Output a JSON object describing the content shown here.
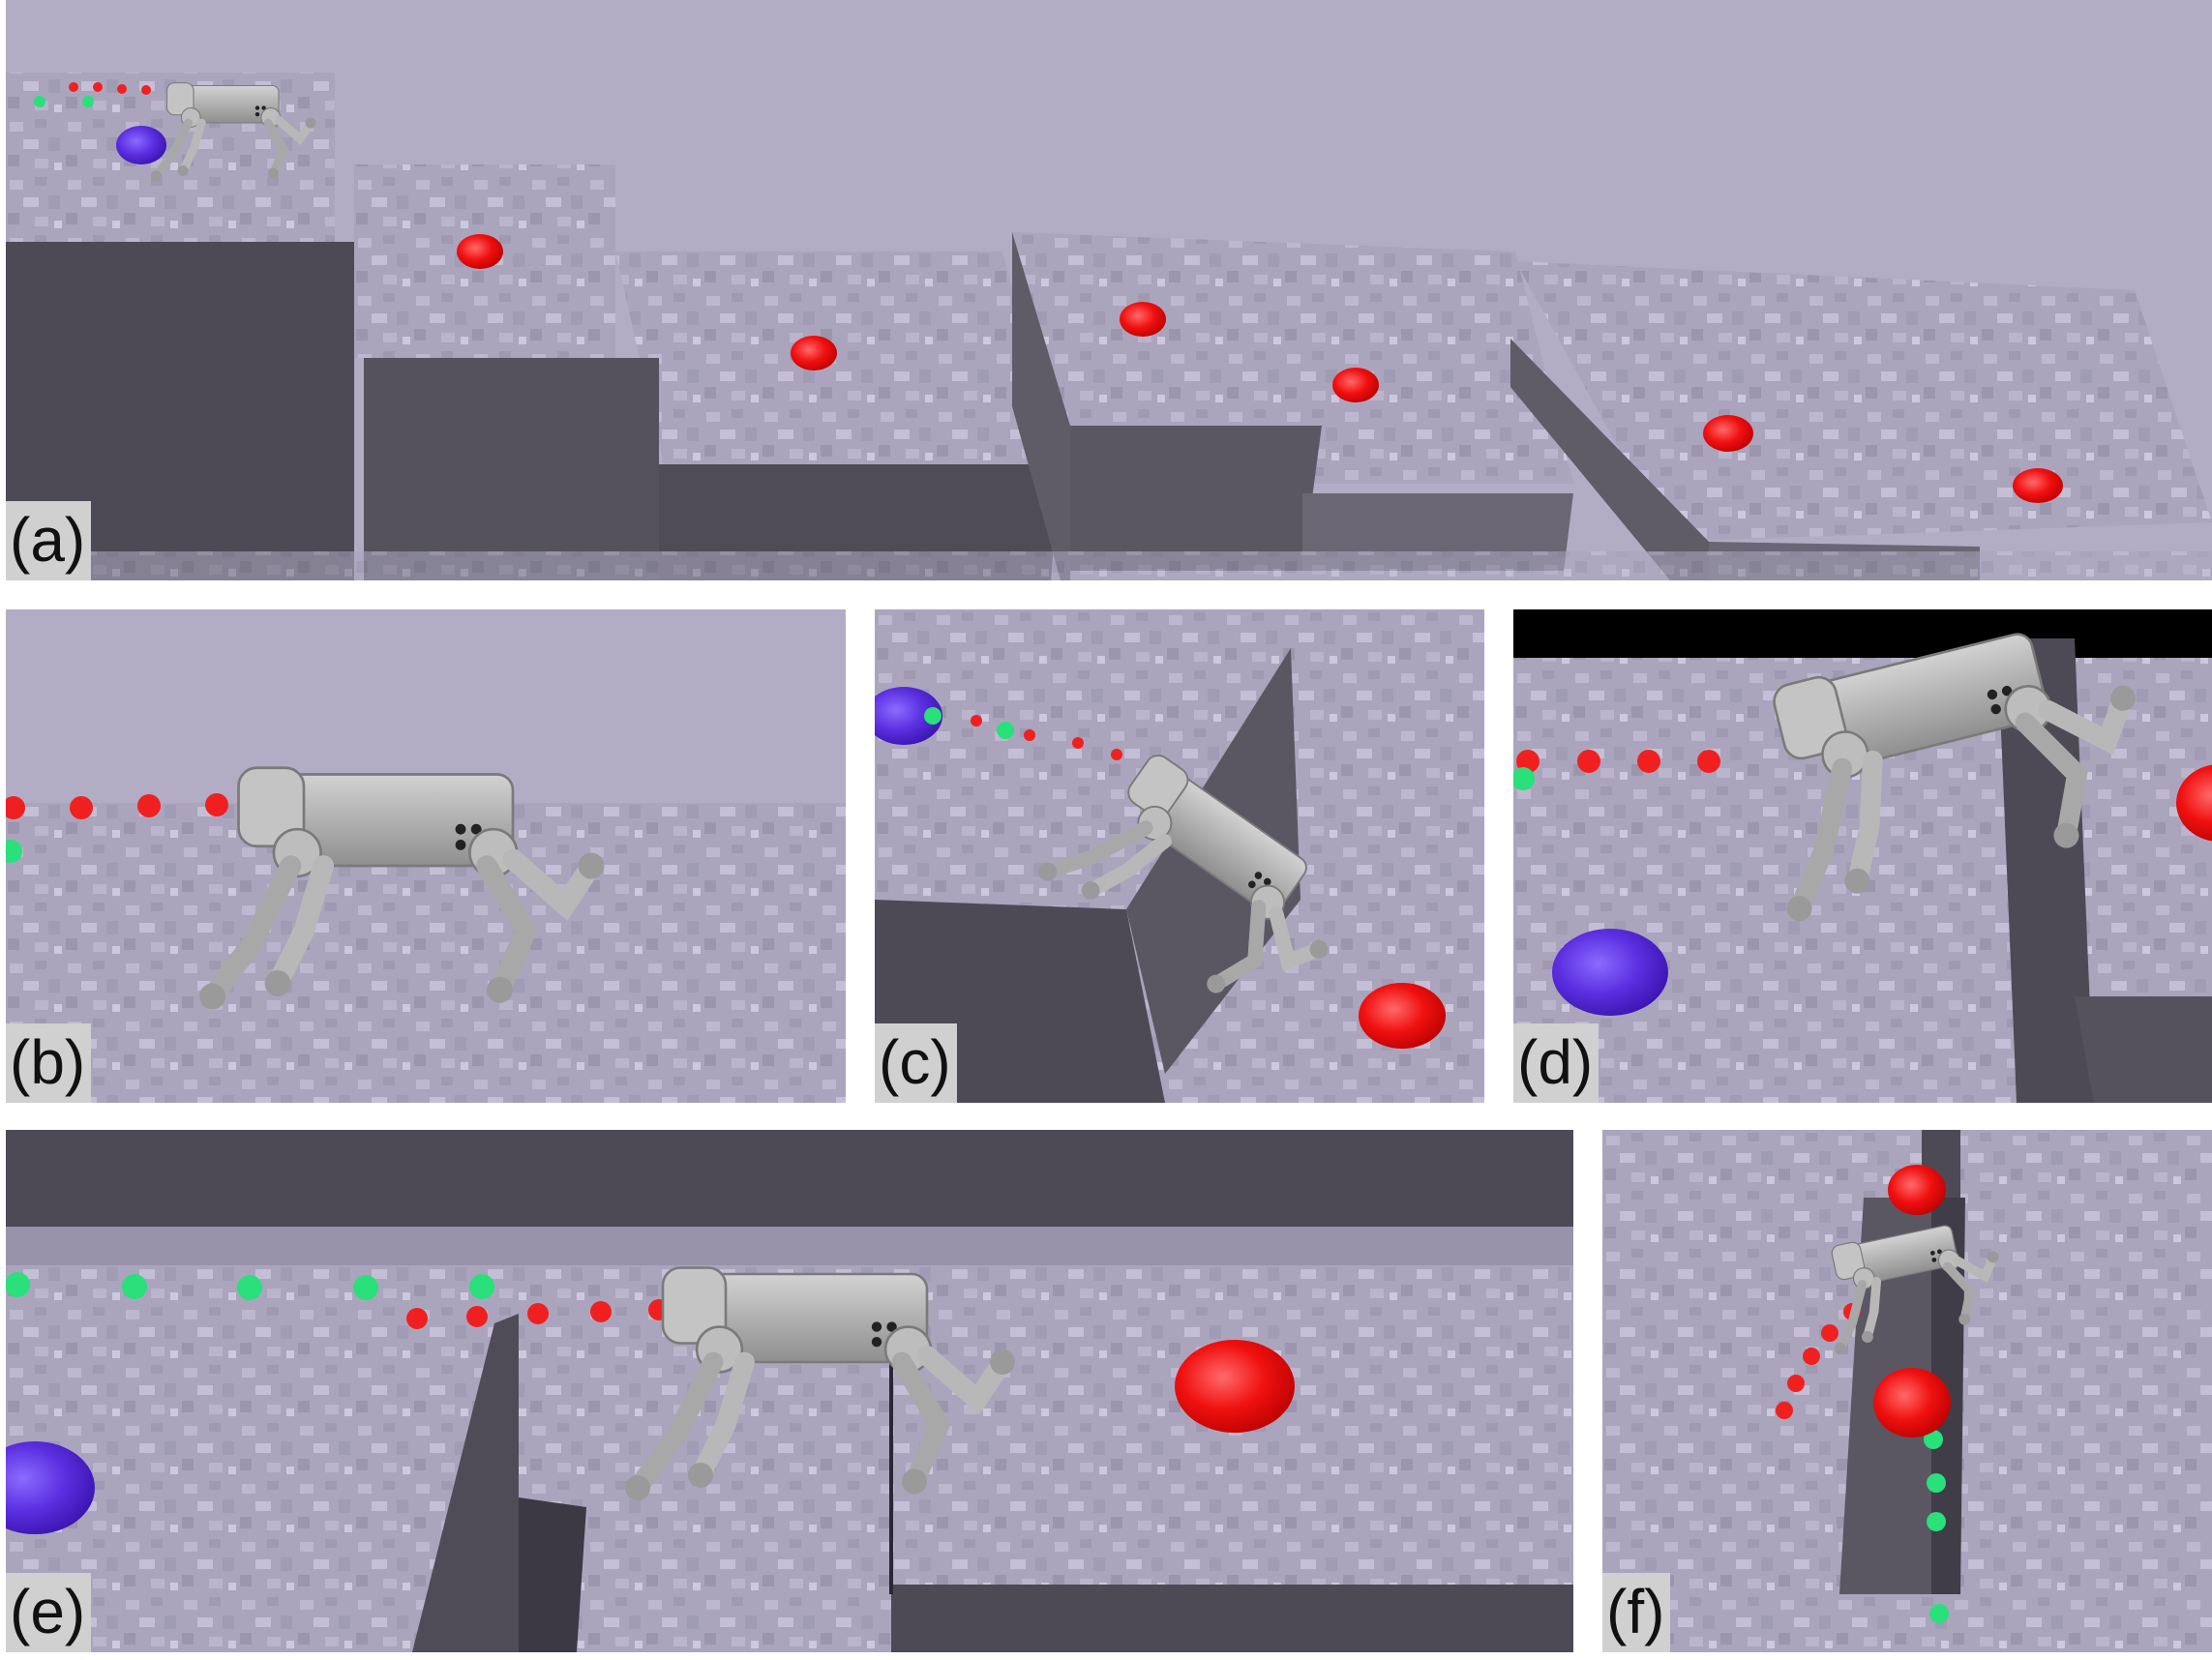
{
  "figure": {
    "panels": [
      {
        "id": "a",
        "label": "(a)"
      },
      {
        "id": "b",
        "label": "(b)"
      },
      {
        "id": "c",
        "label": "(c)"
      },
      {
        "id": "d",
        "label": "(d)"
      },
      {
        "id": "e",
        "label": "(e)"
      },
      {
        "id": "f",
        "label": "(f)"
      }
    ]
  },
  "colors": {
    "sky": "#b2adc4",
    "ground": "#a9a4bc",
    "wall_dark": "#4d4a55",
    "wall_side": "#5f5b67",
    "robot": "#b5b5b5",
    "target_red": "#f01010",
    "start_blue": "#5b2fe0",
    "marker_green": "#29e07a",
    "foot_marks": "#d8f06a"
  }
}
